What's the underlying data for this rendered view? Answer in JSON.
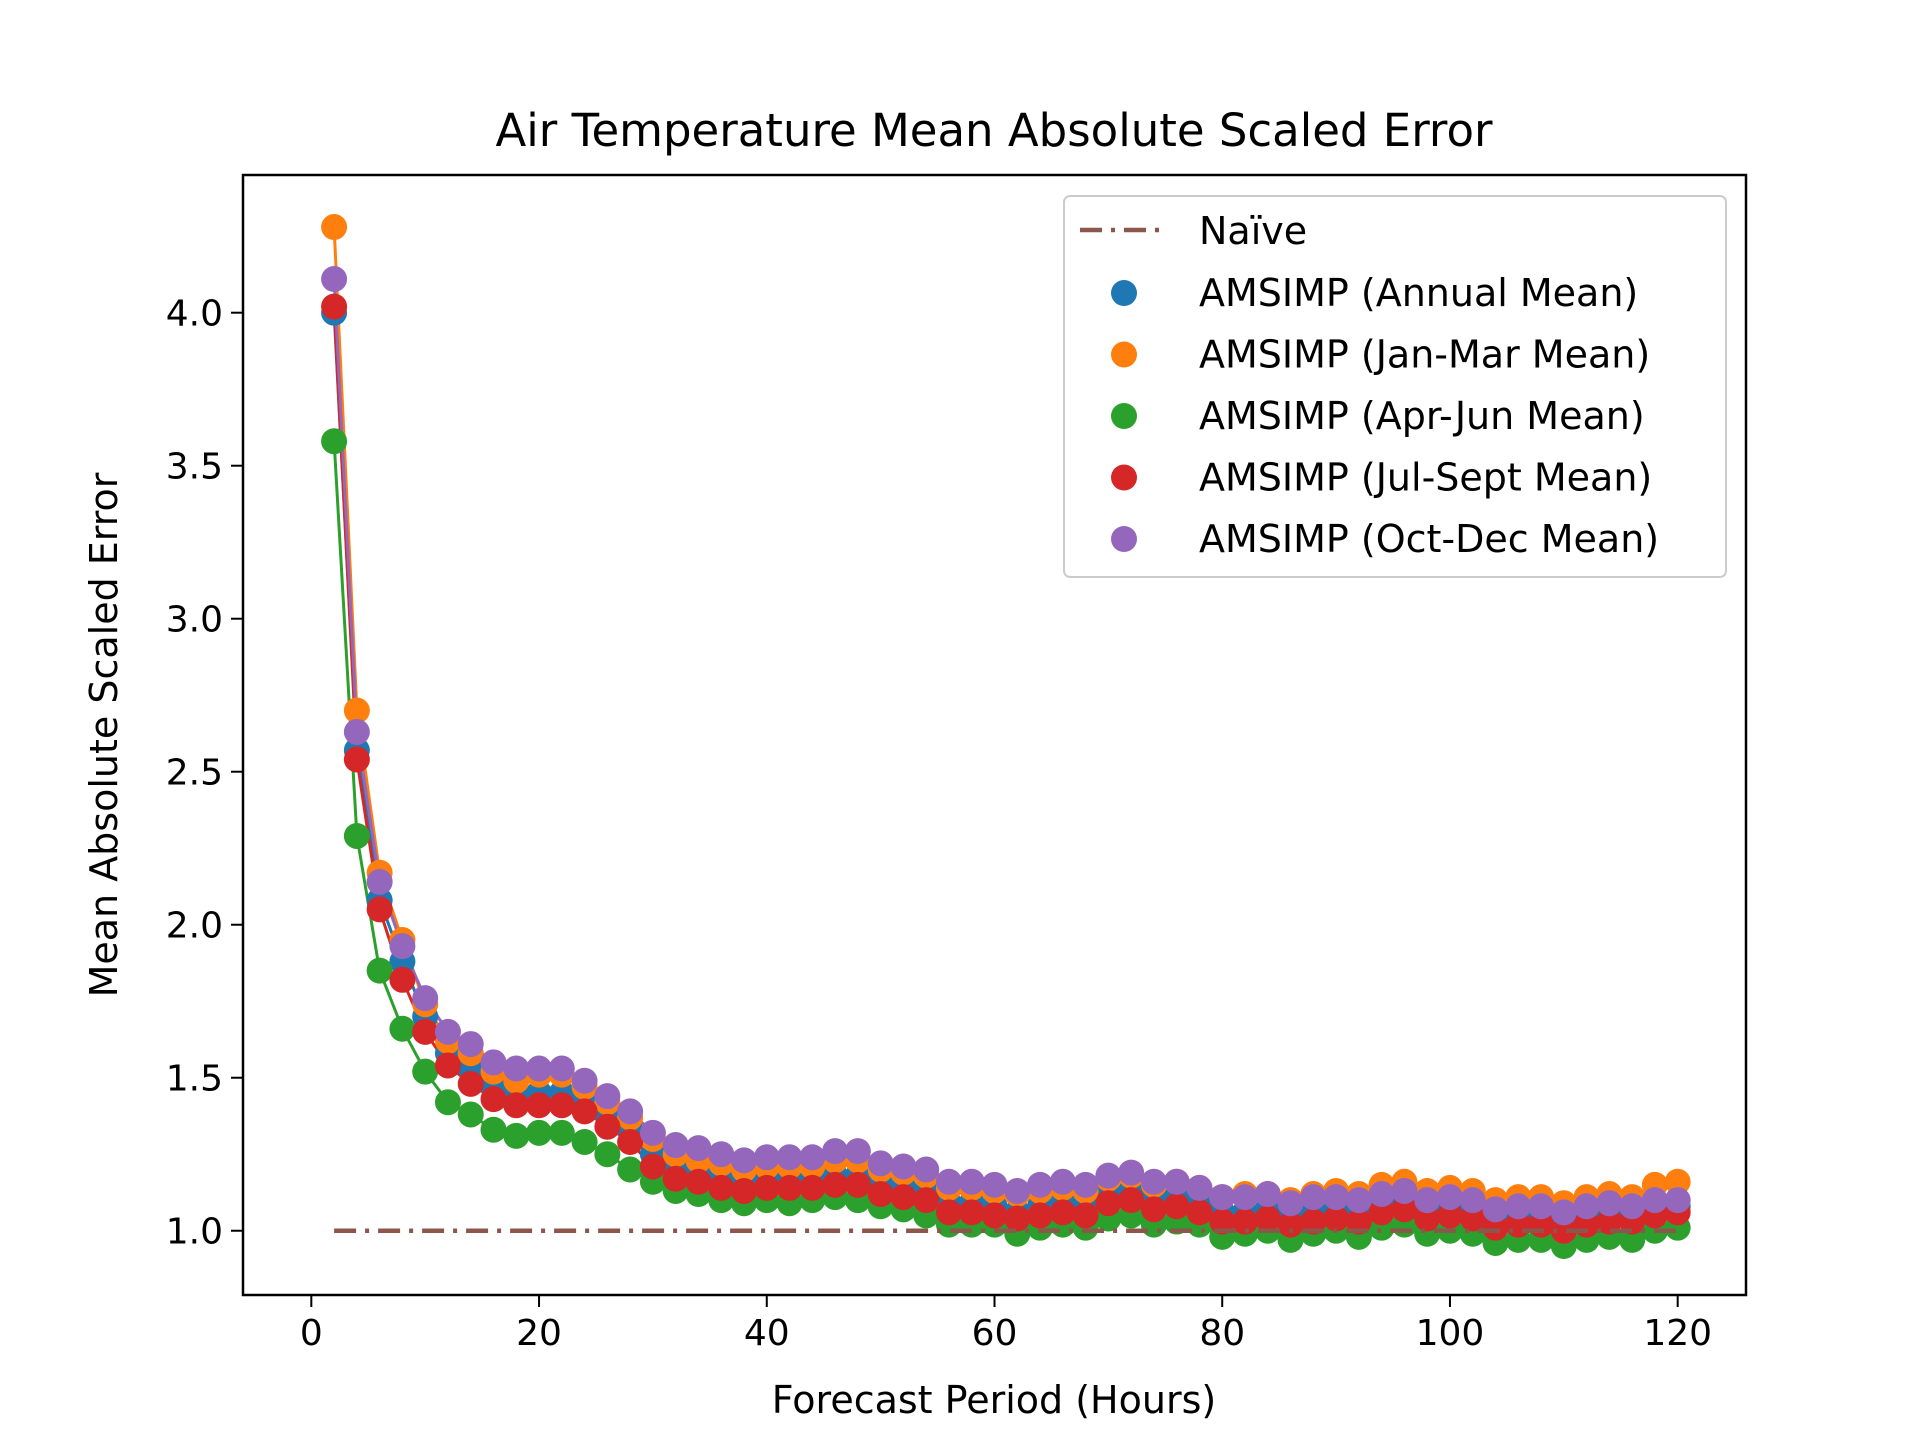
{
  "chart_data": {
    "type": "scatter",
    "title": "Air Temperature Mean Absolute Scaled Error",
    "xlabel": "Forecast Period (Hours)",
    "ylabel": "Mean Absolute Scaled Error",
    "xlim": [
      -6,
      126
    ],
    "ylim": [
      0.79,
      4.45
    ],
    "xticks": [
      0,
      20,
      40,
      60,
      80,
      100,
      120
    ],
    "yticks": [
      1.0,
      1.5,
      2.0,
      2.5,
      3.0,
      3.5,
      4.0
    ],
    "grid": false,
    "legend_position": "top-right",
    "x": [
      2,
      4,
      6,
      8,
      10,
      12,
      14,
      16,
      18,
      20,
      22,
      24,
      26,
      28,
      30,
      32,
      34,
      36,
      38,
      40,
      42,
      44,
      46,
      48,
      50,
      52,
      54,
      56,
      58,
      60,
      62,
      64,
      66,
      68,
      70,
      72,
      74,
      76,
      78,
      80,
      82,
      84,
      86,
      88,
      90,
      92,
      94,
      96,
      98,
      100,
      102,
      104,
      106,
      108,
      110,
      112,
      114,
      116,
      118,
      120
    ],
    "reference_line": {
      "name": "Naïve",
      "color": "#8c564b",
      "style": "dash-dot",
      "y": 1.0,
      "x_range": [
        2,
        120
      ]
    },
    "series": [
      {
        "name": "AMSIMP (Annual Mean)",
        "color": "#1f77b4",
        "values": [
          4.0,
          2.57,
          2.08,
          1.88,
          1.7,
          1.58,
          1.53,
          1.47,
          1.45,
          1.45,
          1.45,
          1.44,
          1.38,
          1.33,
          1.25,
          1.2,
          1.19,
          1.17,
          1.16,
          1.17,
          1.17,
          1.17,
          1.18,
          1.18,
          1.15,
          1.14,
          1.13,
          1.09,
          1.09,
          1.08,
          1.06,
          1.08,
          1.09,
          1.08,
          1.12,
          1.13,
          1.1,
          1.11,
          1.09,
          1.06,
          1.06,
          1.07,
          1.04,
          1.06,
          1.07,
          1.06,
          1.08,
          1.09,
          1.06,
          1.07,
          1.06,
          1.03,
          1.04,
          1.04,
          1.02,
          1.04,
          1.05,
          1.05,
          1.07,
          1.08
        ]
      },
      {
        "name": "AMSIMP (Jan-Mar Mean)",
        "color": "#ff7f0e",
        "values": [
          4.28,
          2.7,
          2.17,
          1.95,
          1.74,
          1.62,
          1.58,
          1.52,
          1.49,
          1.51,
          1.51,
          1.47,
          1.42,
          1.37,
          1.3,
          1.25,
          1.23,
          1.22,
          1.2,
          1.21,
          1.21,
          1.21,
          1.23,
          1.23,
          1.2,
          1.19,
          1.18,
          1.14,
          1.14,
          1.13,
          1.12,
          1.13,
          1.14,
          1.13,
          1.17,
          1.18,
          1.15,
          1.16,
          1.14,
          1.11,
          1.12,
          1.12,
          1.1,
          1.12,
          1.13,
          1.12,
          1.15,
          1.16,
          1.13,
          1.14,
          1.13,
          1.1,
          1.11,
          1.11,
          1.09,
          1.11,
          1.12,
          1.11,
          1.15,
          1.16
        ]
      },
      {
        "name": "AMSIMP (Apr-Jun Mean)",
        "color": "#2ca02c",
        "values": [
          3.58,
          2.29,
          1.85,
          1.66,
          1.52,
          1.42,
          1.38,
          1.33,
          1.31,
          1.32,
          1.32,
          1.29,
          1.25,
          1.2,
          1.16,
          1.13,
          1.12,
          1.1,
          1.09,
          1.1,
          1.09,
          1.1,
          1.11,
          1.1,
          1.08,
          1.07,
          1.05,
          1.02,
          1.02,
          1.02,
          0.99,
          1.01,
          1.02,
          1.01,
          1.04,
          1.05,
          1.02,
          1.03,
          1.02,
          0.98,
          0.99,
          1.0,
          0.97,
          0.99,
          1.0,
          0.98,
          1.01,
          1.02,
          0.99,
          1.0,
          0.99,
          0.96,
          0.97,
          0.97,
          0.95,
          0.97,
          0.98,
          0.97,
          1.0,
          1.01
        ]
      },
      {
        "name": "AMSIMP (Jul-Sept Mean)",
        "color": "#d62728",
        "values": [
          4.02,
          2.54,
          2.05,
          1.82,
          1.65,
          1.54,
          1.48,
          1.43,
          1.41,
          1.41,
          1.41,
          1.39,
          1.34,
          1.29,
          1.21,
          1.17,
          1.16,
          1.14,
          1.13,
          1.14,
          1.14,
          1.14,
          1.15,
          1.15,
          1.12,
          1.11,
          1.1,
          1.06,
          1.06,
          1.05,
          1.04,
          1.05,
          1.06,
          1.05,
          1.09,
          1.1,
          1.07,
          1.08,
          1.06,
          1.03,
          1.03,
          1.04,
          1.02,
          1.03,
          1.04,
          1.03,
          1.06,
          1.07,
          1.04,
          1.05,
          1.04,
          1.01,
          1.02,
          1.02,
          1.0,
          1.02,
          1.03,
          1.03,
          1.05,
          1.06
        ]
      },
      {
        "name": "AMSIMP (Oct-Dec Mean)",
        "color": "#9467bd",
        "values": [
          4.11,
          2.63,
          2.14,
          1.93,
          1.76,
          1.65,
          1.61,
          1.55,
          1.53,
          1.53,
          1.53,
          1.49,
          1.44,
          1.39,
          1.32,
          1.28,
          1.27,
          1.25,
          1.23,
          1.24,
          1.24,
          1.24,
          1.26,
          1.26,
          1.22,
          1.21,
          1.2,
          1.16,
          1.16,
          1.15,
          1.13,
          1.15,
          1.16,
          1.15,
          1.18,
          1.19,
          1.16,
          1.16,
          1.14,
          1.11,
          1.11,
          1.12,
          1.09,
          1.11,
          1.11,
          1.1,
          1.12,
          1.13,
          1.1,
          1.11,
          1.1,
          1.07,
          1.08,
          1.08,
          1.06,
          1.08,
          1.09,
          1.08,
          1.1,
          1.1
        ]
      }
    ]
  }
}
